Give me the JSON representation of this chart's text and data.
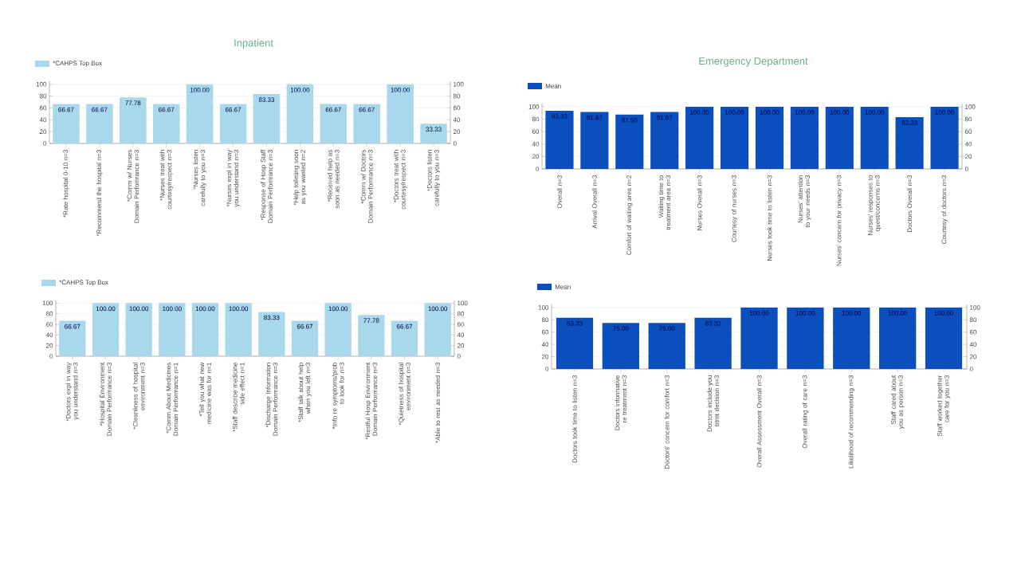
{
  "chart_data": [
    {
      "type": "bar",
      "title": "Inpatient",
      "categories": [
        "*Rate hospital 0-10 n=3",
        "*Recommend the hospital n=3",
        "*Comm w/ Nurses Domain Performance n=3",
        "*Nurses treat with courtesy/respect n=3",
        "*Nurses listen carefully to you n=3",
        "*Nurses expl in way you understand n=3",
        "*Response of Hosp Staff Domain Performance n=3",
        "*Help toileting soon as you wanted n=2",
        "*Received help as soon as needed n=3",
        "*Comm w/ Doctors Domain Performance n=3",
        "*Doctors treat with courtesy/respect n=3",
        "*Doctors listen carefully to you n=3"
      ],
      "series": [
        {
          "name": "*CAHPS Top Box",
          "color": "#a9d8ec",
          "values": [
            66.67,
            66.67,
            77.78,
            66.67,
            100,
            66.67,
            83.33,
            100,
            66.67,
            66.67,
            100,
            33.33
          ],
          "value_labels": [
            "66.67",
            "66.67",
            "77.78",
            "66.67",
            "100.00",
            "66.67",
            "83.33",
            "100.00",
            "66.67",
            "66.67",
            "100.00",
            "33.33"
          ]
        }
      ],
      "ylim": [
        0,
        105
      ],
      "yticks": [
        0,
        20,
        40,
        60,
        80,
        100
      ],
      "y2lim": [
        0,
        105
      ],
      "y2ticks": [
        0,
        20,
        40,
        60,
        80,
        100
      ],
      "grid": "y",
      "legend": "top left"
    },
    {
      "type": "bar",
      "categories": [
        "*Doctors expl in way you understand n=3",
        "*Hospital Environment Domain Performance n=3",
        "*Cleanliness of hospital environment n=3",
        "*Comm About Medicines Domain Performance n=1",
        "*Tell you what new medicine was for n=1",
        "*Staff describe medicine side effect n=1",
        "*Discharge Information Domain Performance n=3",
        "*Staff talk about help when you left n=3",
        "*Info re symptoms/prob to look for n=3",
        "*Restful Hosp Environment Domain Performance n=3",
        "*Quietness of hospital environment n=3",
        "*Able to rest as needed n=3"
      ],
      "series": [
        {
          "name": "*CAHPS Top Box",
          "color": "#a9d8ec",
          "values": [
            66.67,
            100,
            100,
            100,
            100,
            100,
            83.33,
            66.67,
            100,
            77.78,
            66.67,
            100
          ],
          "value_labels": [
            "66.67",
            "100.00",
            "100.00",
            "100.00",
            "100.00",
            "100.00",
            "83.33",
            "66.67",
            "100.00",
            "77.78",
            "66.67",
            "100.00"
          ]
        }
      ],
      "ylim": [
        0,
        105
      ],
      "yticks": [
        0,
        20,
        40,
        60,
        80,
        100
      ],
      "y2lim": [
        0,
        105
      ],
      "y2ticks": [
        0,
        20,
        40,
        60,
        80,
        100
      ],
      "grid": "y",
      "legend": "top left"
    },
    {
      "type": "bar",
      "title": "Emergency Department",
      "categories": [
        "Overall n=3",
        "Arrival Overall n=3",
        "Comfort of waiting area n=2",
        "Waiting time to treatment area n=3",
        "Nurses Overall n=3",
        "Courtesy of nurses n=3",
        "Nurses took time to listen n=3",
        "Nurses' attention to your needs n=3",
        "Nurses' concern for privacy n=3",
        "Nurses' responses to quest/concerns n=3",
        "Doctors Overall n=3",
        "Courtesy of doctors n=3"
      ],
      "series": [
        {
          "name": "Mean",
          "color": "#0b4fbf",
          "values": [
            93.33,
            91.67,
            87.5,
            91.67,
            100,
            100,
            100,
            100,
            100,
            100,
            83.33,
            100
          ],
          "value_labels": [
            "93.33",
            "91.67",
            "87.50",
            "91.67",
            "100.00",
            "100.00",
            "100.00",
            "100.00",
            "100.00",
            "100.00",
            "83.33",
            "100.00"
          ]
        }
      ],
      "ylim": [
        0,
        105
      ],
      "yticks": [
        0,
        20,
        40,
        60,
        80,
        100
      ],
      "y2lim": [
        0,
        105
      ],
      "y2ticks": [
        0,
        20,
        40,
        60,
        80,
        100
      ],
      "grid": "y",
      "legend": "top left"
    },
    {
      "type": "bar",
      "categories": [
        "Doctors took time to listen n=3",
        "Doctors informative re treatment n=3",
        "Doctors' concern for comfort n=3",
        "Doctors include you trtmt decision n=3",
        "Overall Assessment Overall n=3",
        "Overall rating of care n=3",
        "Likelihood of recommending n=3",
        "Staff cared about you as person n=3",
        "Staff worked together care for you n=3"
      ],
      "series": [
        {
          "name": "Mean",
          "color": "#0b4fbf",
          "values": [
            83.33,
            75,
            75,
            83.33,
            100,
            100,
            100,
            100,
            100
          ],
          "value_labels": [
            "83.33",
            "75.00",
            "75.00",
            "83.33",
            "100.00",
            "100.00",
            "100.00",
            "100.00",
            "100.00"
          ]
        }
      ],
      "ylim": [
        0,
        105
      ],
      "yticks": [
        0,
        20,
        40,
        60,
        80,
        100
      ],
      "y2lim": [
        0,
        105
      ],
      "y2ticks": [
        0,
        20,
        40,
        60,
        80,
        100
      ],
      "grid": "y",
      "legend": "top left"
    }
  ]
}
